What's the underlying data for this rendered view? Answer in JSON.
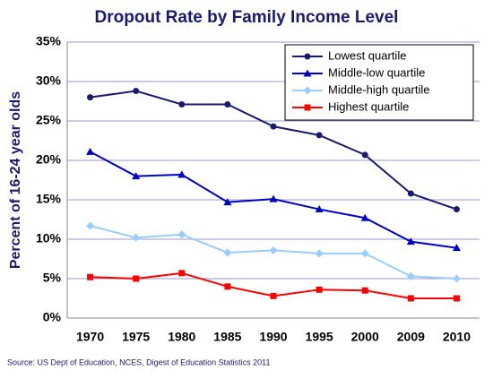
{
  "chart_data": {
    "type": "line",
    "title": "Dropout Rate by Family Income Level",
    "y_label": "Percent of 16-24 year olds",
    "source": "Source: US Dept of Education, NCES, Digest of Education Statistics 2011",
    "categories": [
      "1970",
      "1975",
      "1980",
      "1985",
      "1990",
      "1995",
      "2000",
      "2009",
      "2010"
    ],
    "series": [
      {
        "name": "Lowest quartile",
        "color": "#1a1a6e",
        "marker": "circle",
        "values": [
          28.0,
          28.8,
          27.1,
          27.1,
          24.3,
          23.2,
          20.7,
          15.8,
          13.8
        ]
      },
      {
        "name": "Middle-low quartile",
        "color": "#0000cc",
        "marker": "triangle",
        "values": [
          21.1,
          18.0,
          18.2,
          14.7,
          15.1,
          13.8,
          12.7,
          9.7,
          8.9
        ]
      },
      {
        "name": "Middle-high quartile",
        "color": "#99ccff",
        "marker": "diamond",
        "values": [
          11.7,
          10.2,
          10.6,
          8.3,
          8.6,
          8.2,
          8.2,
          5.3,
          5.0
        ]
      },
      {
        "name": "Highest quartile",
        "color": "#ff0000",
        "marker": "square",
        "values": [
          5.2,
          5.0,
          5.7,
          4.0,
          2.8,
          3.6,
          3.5,
          2.5,
          2.5
        ]
      }
    ],
    "ylim": [
      0,
      35
    ],
    "yticks": [
      {
        "value": 0,
        "label": "0%"
      },
      {
        "value": 5,
        "label": "5%"
      },
      {
        "value": 10,
        "label": "10%"
      },
      {
        "value": 15,
        "label": "15%"
      },
      {
        "value": 20,
        "label": "20%"
      },
      {
        "value": 25,
        "label": "25%"
      },
      {
        "value": 30,
        "label": "30%"
      },
      {
        "value": 35,
        "label": "35%"
      }
    ],
    "grid": true,
    "legend": "top-right"
  }
}
